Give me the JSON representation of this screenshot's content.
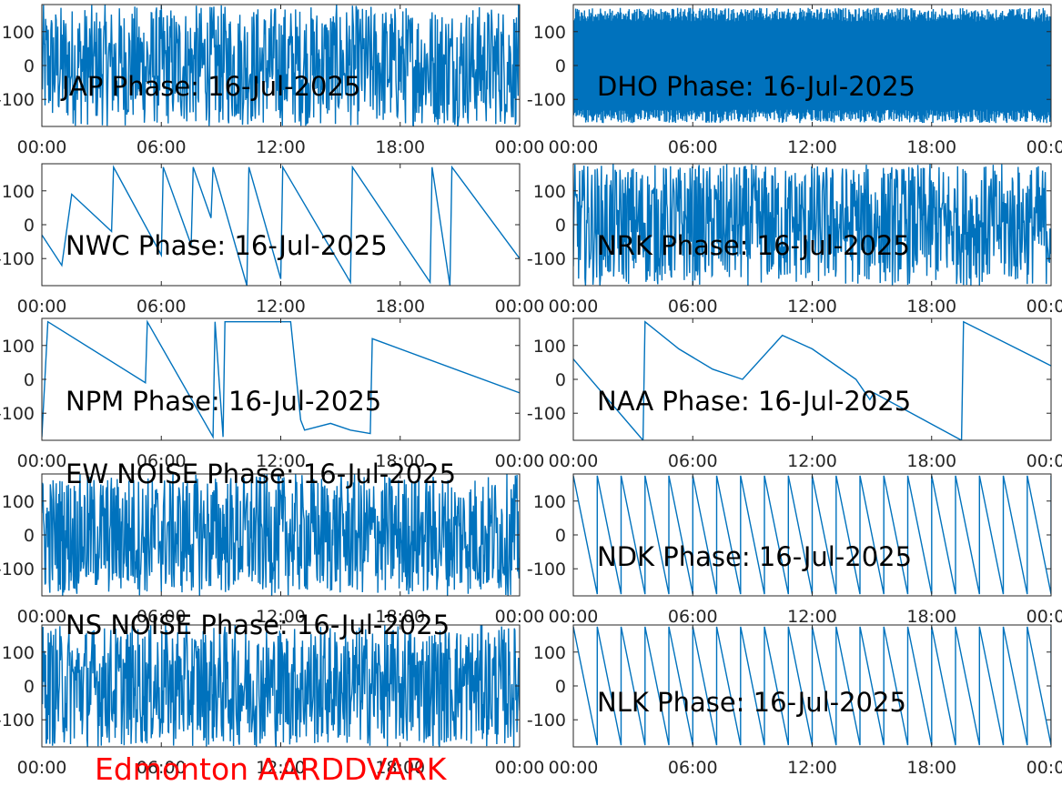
{
  "caption": "Edmonton AARDDVARK",
  "colors": {
    "series": "#0072BD",
    "caption": "#ff0000",
    "axes": "#262626"
  },
  "chart_data": [
    {
      "type": "line",
      "title": "JAP Phase: 16-Jul-2025",
      "ylim": [
        -180,
        180
      ],
      "yticks": [
        "-100",
        "0",
        "100"
      ],
      "xticks": [
        "00:00",
        "06:00",
        "12:00",
        "18:00",
        "00:00"
      ],
      "xlim": [
        "00:00",
        "24:00"
      ],
      "pattern": "noise",
      "series": [
        {
          "x": [
            0,
            24
          ],
          "y": [
            0,
            0
          ]
        }
      ]
    },
    {
      "type": "line",
      "title": "DHO Phase: 16-Jul-2025",
      "ylim": [
        -180,
        180
      ],
      "yticks": [
        "-100",
        "0",
        "100"
      ],
      "xticks": [
        "00:00",
        "06:00",
        "12:00",
        "18:00",
        "00:00"
      ],
      "xlim": [
        "00:00",
        "24:00"
      ],
      "pattern": "fastwrap",
      "series": [
        {
          "x": [
            0,
            24
          ],
          "y": [
            0,
            0
          ]
        }
      ]
    },
    {
      "type": "line",
      "title": "NWC Phase: 16-Jul-2025",
      "ylim": [
        -180,
        180
      ],
      "yticks": [
        "-100",
        "0",
        "100"
      ],
      "xticks": [
        "00:00",
        "06:00",
        "12:00",
        "18:00",
        "00:00"
      ],
      "xlim": [
        "00:00",
        "24:00"
      ],
      "pattern": "segments",
      "series": [
        {
          "x": [
            0,
            1,
            1.5,
            3.5,
            3.6,
            6,
            6.1,
            7.5,
            7.6,
            8.5,
            8.6,
            10.3,
            10.4,
            12,
            12.1,
            15.5,
            15.6,
            19.5,
            19.6,
            20.5,
            20.6,
            24
          ],
          "y": [
            -30,
            -120,
            90,
            -20,
            170,
            -90,
            170,
            -60,
            170,
            20,
            170,
            -180,
            170,
            -160,
            170,
            -170,
            170,
            -170,
            170,
            -180,
            170,
            -100
          ]
        }
      ]
    },
    {
      "type": "line",
      "title": "NRK Phase: 16-Jul-2025",
      "ylim": [
        -180,
        180
      ],
      "yticks": [
        "-100",
        "0",
        "100"
      ],
      "xticks": [
        "00:00",
        "06:00",
        "12:00",
        "18:00",
        "00:00"
      ],
      "xlim": [
        "00:00",
        "24:00"
      ],
      "pattern": "noise",
      "series": [
        {
          "x": [
            0,
            24
          ],
          "y": [
            0,
            0
          ]
        }
      ]
    },
    {
      "type": "line",
      "title": "NPM Phase: 16-Jul-2025",
      "ylim": [
        -180,
        180
      ],
      "yticks": [
        "-100",
        "0",
        "100"
      ],
      "xticks": [
        "00:00",
        "06:00",
        "12:00",
        "18:00",
        "00:00"
      ],
      "xlim": [
        "00:00",
        "24:00"
      ],
      "pattern": "segments",
      "series": [
        {
          "x": [
            0,
            0.3,
            5.2,
            5.3,
            8.6,
            8.7,
            9.1,
            9.2,
            12.5,
            13.0,
            13.2,
            14.5,
            15.5,
            16.5,
            16.6,
            24
          ],
          "y": [
            -170,
            170,
            -10,
            170,
            -170,
            170,
            -170,
            170,
            170,
            -120,
            -150,
            -130,
            -150,
            -160,
            120,
            -40
          ]
        }
      ]
    },
    {
      "type": "line",
      "title": "NAA Phase: 16-Jul-2025",
      "ylim": [
        -180,
        180
      ],
      "yticks": [
        "-100",
        "0",
        "100"
      ],
      "xticks": [
        "00:00",
        "06:00",
        "12:00",
        "18:00",
        "00:00"
      ],
      "xlim": [
        "00:00",
        "24:00"
      ],
      "pattern": "segments",
      "series": [
        {
          "x": [
            0,
            3.5,
            3.6,
            5.3,
            7,
            8.5,
            10.5,
            12,
            14.2,
            14.9,
            15.1,
            19.5,
            19.6,
            24
          ],
          "y": [
            60,
            -180,
            170,
            90,
            30,
            0,
            130,
            90,
            0,
            -60,
            -40,
            -180,
            170,
            40
          ]
        }
      ]
    },
    {
      "type": "line",
      "title": "EW NOISE Phase: 16-Jul-2025",
      "ylim": [
        -180,
        180
      ],
      "yticks": [
        "-100",
        "0",
        "100"
      ],
      "xticks": [
        "00:00",
        "06:00",
        "12:00",
        "18:00",
        "00:00"
      ],
      "xlim": [
        "00:00",
        "24:00"
      ],
      "pattern": "noise",
      "series": [
        {
          "x": [
            0,
            24
          ],
          "y": [
            0,
            0
          ]
        }
      ]
    },
    {
      "type": "line",
      "title": "NDK Phase: 16-Jul-2025",
      "ylim": [
        -180,
        180
      ],
      "yticks": [
        "-100",
        "0",
        "100"
      ],
      "xticks": [
        "00:00",
        "06:00",
        "12:00",
        "18:00",
        "00:00"
      ],
      "xlim": [
        "00:00",
        "24:00"
      ],
      "pattern": "sawtooth",
      "series": [
        {
          "x": [
            0,
            24
          ],
          "y": [
            180,
            -180
          ]
        }
      ]
    },
    {
      "type": "line",
      "title": "NS NOISE Phase: 16-Jul-2025",
      "ylim": [
        -180,
        180
      ],
      "yticks": [
        "-100",
        "0",
        "100"
      ],
      "xticks": [
        "00:00",
        "06:00",
        "12:00",
        "18:00",
        "00:00"
      ],
      "xlim": [
        "00:00",
        "24:00"
      ],
      "pattern": "noise",
      "series": [
        {
          "x": [
            0,
            24
          ],
          "y": [
            0,
            0
          ]
        }
      ]
    },
    {
      "type": "line",
      "title": "NLK Phase: 16-Jul-2025",
      "ylim": [
        -180,
        180
      ],
      "yticks": [
        "-100",
        "0",
        "100"
      ],
      "xticks": [
        "00:00",
        "06:00",
        "12:00",
        "18:00",
        "00:00"
      ],
      "xlim": [
        "00:00",
        "24:00"
      ],
      "pattern": "sawtooth",
      "series": [
        {
          "x": [
            0,
            24
          ],
          "y": [
            180,
            -180
          ]
        }
      ]
    }
  ]
}
